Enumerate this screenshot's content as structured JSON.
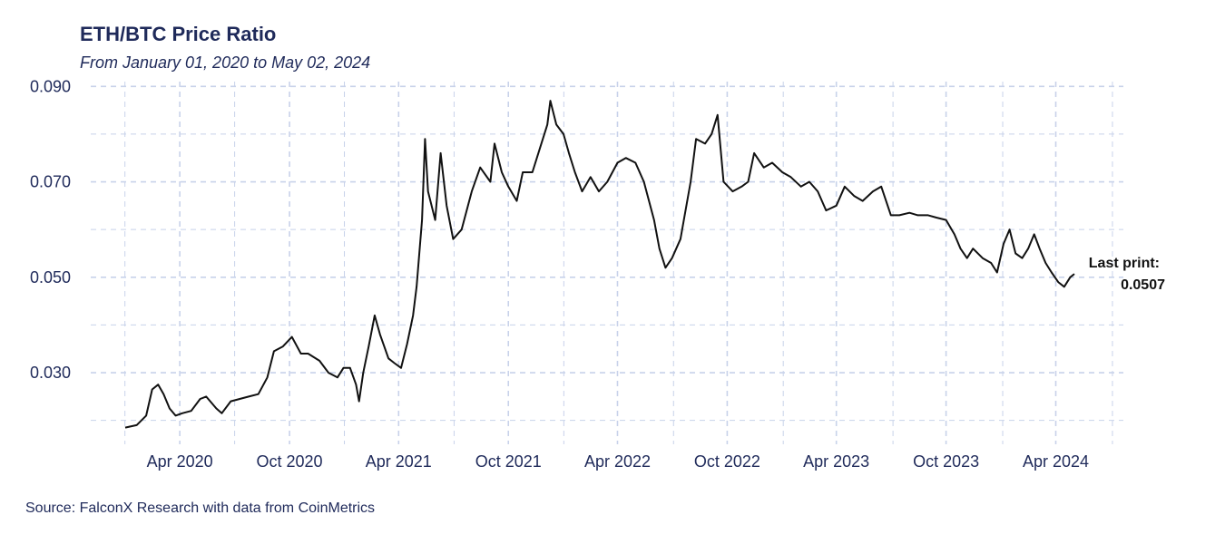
{
  "chart_data": {
    "type": "line",
    "title": "ETH/BTC Price Ratio",
    "subtitle": "From January 01, 2020 to May 02, 2024",
    "source": "Source: FalconX Research with data from CoinMetrics",
    "xlabel": "",
    "ylabel": "",
    "x_range": [
      "2020-01-01",
      "2024-05-02"
    ],
    "ylim": [
      0.015,
      0.091
    ],
    "y_ticks": [
      0.03,
      0.05,
      0.07,
      0.09
    ],
    "y_tick_labels": [
      "0.030",
      "0.050",
      "0.070",
      "0.090"
    ],
    "x_ticks": [
      "2020-04-01",
      "2020-10-01",
      "2021-04-01",
      "2021-10-01",
      "2022-04-01",
      "2022-10-01",
      "2023-04-01",
      "2023-10-01",
      "2024-04-01"
    ],
    "x_tick_labels": [
      "Apr 2020",
      "Oct 2020",
      "Apr 2021",
      "Oct 2021",
      "Apr 2022",
      "Oct 2022",
      "Apr 2023",
      "Oct 2023",
      "Apr 2024"
    ],
    "grid": true,
    "line_color": "#111111",
    "grid_color": "#c8d2ea",
    "annotation": {
      "label": "Last print:",
      "value": "0.0507",
      "value_num": 0.0507,
      "date": "2024-05-02"
    },
    "series": [
      {
        "values": [
          [
            "2020-01-01",
            0.0185
          ],
          [
            "2020-01-20",
            0.019
          ],
          [
            "2020-02-05",
            0.021
          ],
          [
            "2020-02-15",
            0.0265
          ],
          [
            "2020-02-25",
            0.0275
          ],
          [
            "2020-03-05",
            0.0255
          ],
          [
            "2020-03-15",
            0.0225
          ],
          [
            "2020-03-25",
            0.021
          ],
          [
            "2020-04-05",
            0.0215
          ],
          [
            "2020-04-20",
            0.022
          ],
          [
            "2020-05-05",
            0.0245
          ],
          [
            "2020-05-15",
            0.025
          ],
          [
            "2020-06-01",
            0.0225
          ],
          [
            "2020-06-10",
            0.0215
          ],
          [
            "2020-06-25",
            0.024
          ],
          [
            "2020-07-10",
            0.0245
          ],
          [
            "2020-07-25",
            0.025
          ],
          [
            "2020-08-10",
            0.0255
          ],
          [
            "2020-08-25",
            0.029
          ],
          [
            "2020-09-05",
            0.0345
          ],
          [
            "2020-09-20",
            0.0355
          ],
          [
            "2020-10-05",
            0.0375
          ],
          [
            "2020-10-20",
            0.034
          ],
          [
            "2020-11-01",
            0.034
          ],
          [
            "2020-11-20",
            0.0325
          ],
          [
            "2020-12-05",
            0.03
          ],
          [
            "2020-12-20",
            0.029
          ],
          [
            "2020-12-30",
            0.031
          ],
          [
            "2021-01-10",
            0.031
          ],
          [
            "2021-01-20",
            0.0275
          ],
          [
            "2021-01-25",
            0.024
          ],
          [
            "2021-02-01",
            0.03
          ],
          [
            "2021-02-10",
            0.0355
          ],
          [
            "2021-02-20",
            0.042
          ],
          [
            "2021-03-01",
            0.038
          ],
          [
            "2021-03-15",
            0.033
          ],
          [
            "2021-03-25",
            0.032
          ],
          [
            "2021-04-05",
            0.031
          ],
          [
            "2021-04-15",
            0.036
          ],
          [
            "2021-04-25",
            0.042
          ],
          [
            "2021-05-01",
            0.048
          ],
          [
            "2021-05-10",
            0.062
          ],
          [
            "2021-05-15",
            0.079
          ],
          [
            "2021-05-20",
            0.068
          ],
          [
            "2021-06-01",
            0.062
          ],
          [
            "2021-06-10",
            0.076
          ],
          [
            "2021-06-20",
            0.065
          ],
          [
            "2021-07-01",
            0.058
          ],
          [
            "2021-07-15",
            0.06
          ],
          [
            "2021-08-01",
            0.068
          ],
          [
            "2021-08-15",
            0.073
          ],
          [
            "2021-09-01",
            0.07
          ],
          [
            "2021-09-08",
            0.078
          ],
          [
            "2021-09-20",
            0.072
          ],
          [
            "2021-10-01",
            0.069
          ],
          [
            "2021-10-15",
            0.066
          ],
          [
            "2021-10-25",
            0.072
          ],
          [
            "2021-11-10",
            0.072
          ],
          [
            "2021-11-25",
            0.078
          ],
          [
            "2021-12-05",
            0.082
          ],
          [
            "2021-12-10",
            0.087
          ],
          [
            "2021-12-20",
            0.082
          ],
          [
            "2022-01-01",
            0.08
          ],
          [
            "2022-01-10",
            0.076
          ],
          [
            "2022-01-20",
            0.072
          ],
          [
            "2022-02-01",
            0.068
          ],
          [
            "2022-02-15",
            0.071
          ],
          [
            "2022-03-01",
            0.068
          ],
          [
            "2022-03-15",
            0.07
          ],
          [
            "2022-04-01",
            0.074
          ],
          [
            "2022-04-15",
            0.075
          ],
          [
            "2022-05-01",
            0.074
          ],
          [
            "2022-05-15",
            0.07
          ],
          [
            "2022-06-01",
            0.062
          ],
          [
            "2022-06-10",
            0.056
          ],
          [
            "2022-06-20",
            0.052
          ],
          [
            "2022-07-01",
            0.054
          ],
          [
            "2022-07-15",
            0.058
          ],
          [
            "2022-08-01",
            0.07
          ],
          [
            "2022-08-10",
            0.079
          ],
          [
            "2022-08-25",
            0.078
          ],
          [
            "2022-09-05",
            0.08
          ],
          [
            "2022-09-15",
            0.084
          ],
          [
            "2022-09-25",
            0.07
          ],
          [
            "2022-10-10",
            0.068
          ],
          [
            "2022-10-25",
            0.069
          ],
          [
            "2022-11-05",
            0.07
          ],
          [
            "2022-11-15",
            0.076
          ],
          [
            "2022-12-01",
            0.073
          ],
          [
            "2022-12-15",
            0.074
          ],
          [
            "2023-01-01",
            0.072
          ],
          [
            "2023-01-15",
            0.071
          ],
          [
            "2023-02-01",
            0.069
          ],
          [
            "2023-02-15",
            0.07
          ],
          [
            "2023-03-01",
            0.068
          ],
          [
            "2023-03-15",
            0.064
          ],
          [
            "2023-04-01",
            0.065
          ],
          [
            "2023-04-15",
            0.069
          ],
          [
            "2023-05-01",
            0.067
          ],
          [
            "2023-05-15",
            0.066
          ],
          [
            "2023-06-01",
            0.068
          ],
          [
            "2023-06-15",
            0.069
          ],
          [
            "2023-07-01",
            0.063
          ],
          [
            "2023-07-15",
            0.063
          ],
          [
            "2023-08-01",
            0.0635
          ],
          [
            "2023-08-15",
            0.063
          ],
          [
            "2023-09-01",
            0.063
          ],
          [
            "2023-09-15",
            0.0625
          ],
          [
            "2023-10-01",
            0.062
          ],
          [
            "2023-10-15",
            0.059
          ],
          [
            "2023-10-25",
            0.056
          ],
          [
            "2023-11-05",
            0.054
          ],
          [
            "2023-11-15",
            0.056
          ],
          [
            "2023-12-01",
            0.054
          ],
          [
            "2023-12-15",
            0.053
          ],
          [
            "2023-12-25",
            0.051
          ],
          [
            "2024-01-05",
            0.057
          ],
          [
            "2024-01-15",
            0.06
          ],
          [
            "2024-01-25",
            0.055
          ],
          [
            "2024-02-05",
            0.054
          ],
          [
            "2024-02-15",
            0.056
          ],
          [
            "2024-02-25",
            0.059
          ],
          [
            "2024-03-05",
            0.056
          ],
          [
            "2024-03-15",
            0.053
          ],
          [
            "2024-03-25",
            0.051
          ],
          [
            "2024-04-05",
            0.049
          ],
          [
            "2024-04-15",
            0.048
          ],
          [
            "2024-04-25",
            0.05
          ],
          [
            "2024-05-02",
            0.0507
          ]
        ]
      }
    ]
  }
}
